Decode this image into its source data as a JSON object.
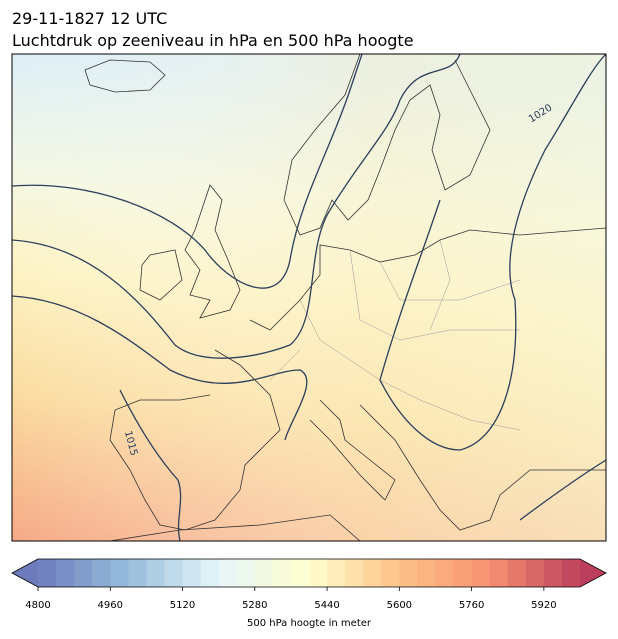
{
  "header": {
    "title": "29-11-1827 12 UTC",
    "subtitle": "Luchtdruk op zeeniveau in hPa en 500 hPa hoogte"
  },
  "map": {
    "contour_labels": [
      "1020",
      "1015"
    ]
  },
  "colorbar": {
    "label": "500 hPa hoogte in meter",
    "range": [
      4800,
      6000
    ],
    "step": 40,
    "ticks": [
      4800,
      4960,
      5120,
      5280,
      5440,
      5600,
      5760,
      5920
    ],
    "colormap": [
      "#3d4fa6",
      "#74a9cf",
      "#e0f3f8",
      "#ffffbf",
      "#fdae61",
      "#f46d43",
      "#a50026"
    ],
    "opacity": 0.75
  }
}
